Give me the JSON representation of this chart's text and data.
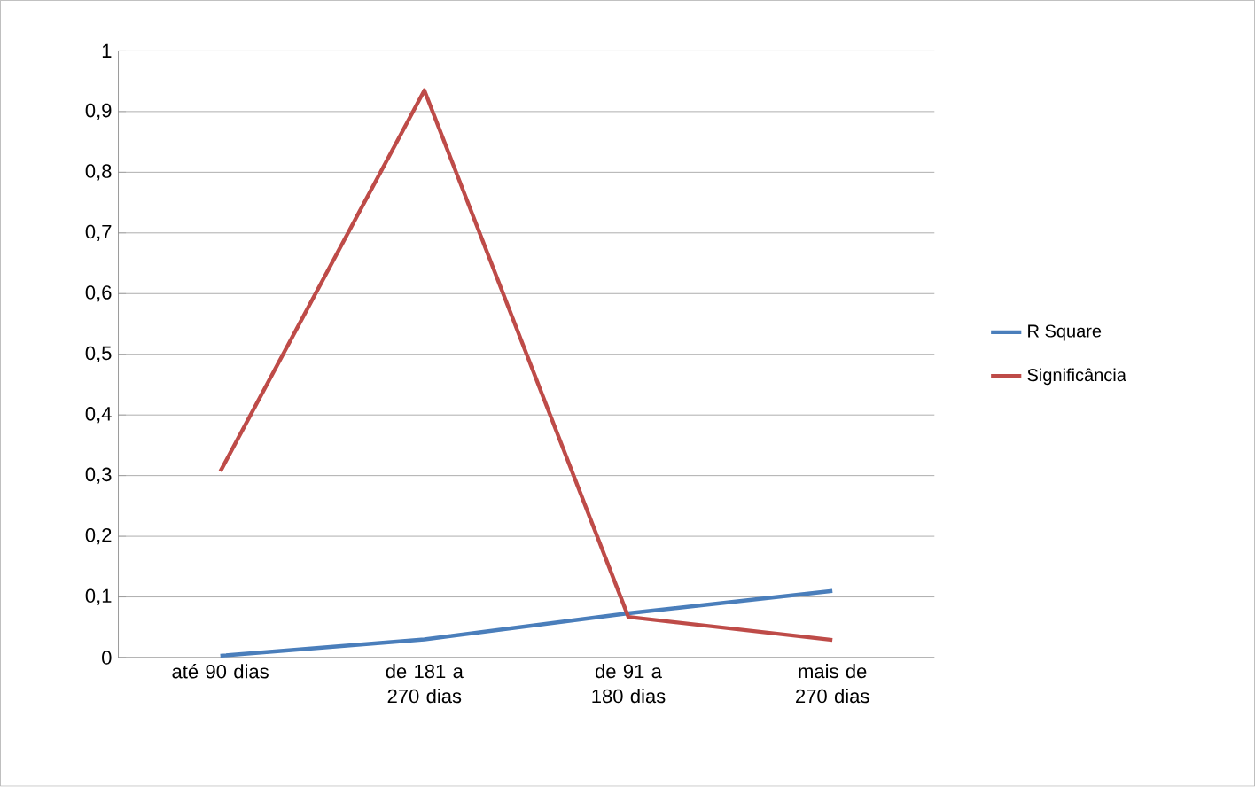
{
  "chart_data": {
    "type": "line",
    "categories": [
      "até 90 dias",
      "de 181 a 270 dias",
      "de 91 a 180 dias",
      "mais de 270 dias"
    ],
    "series": [
      {
        "name": "R Square",
        "color": "#4a7ebb",
        "values": [
          0.003,
          0.03,
          0.073,
          0.11
        ]
      },
      {
        "name": "Significância",
        "color": "#be4b48",
        "values": [
          0.307,
          0.935,
          0.067,
          0.029
        ]
      }
    ],
    "ylim": [
      0,
      1
    ],
    "yticks": [
      {
        "value": 0,
        "label": "0"
      },
      {
        "value": 0.1,
        "label": "0,1"
      },
      {
        "value": 0.2,
        "label": "0,2"
      },
      {
        "value": 0.3,
        "label": "0,3"
      },
      {
        "value": 0.4,
        "label": "0,4"
      },
      {
        "value": 0.5,
        "label": "0,5"
      },
      {
        "value": 0.6,
        "label": "0,6"
      },
      {
        "value": 0.7,
        "label": "0,7"
      },
      {
        "value": 0.8,
        "label": "0,8"
      },
      {
        "value": 0.9,
        "label": "0,9"
      },
      {
        "value": 1,
        "label": "1"
      }
    ],
    "grid": "y",
    "legend": "right",
    "marker": "none",
    "line_style": "solid"
  }
}
